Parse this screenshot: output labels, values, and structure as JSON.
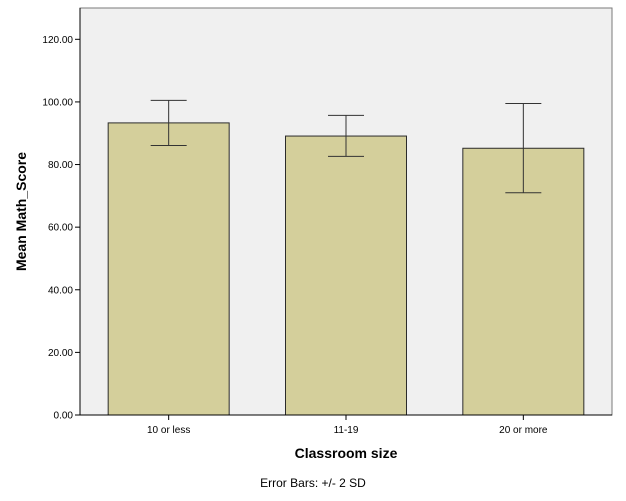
{
  "chart_data": {
    "type": "bar",
    "categories": [
      "10 or less",
      "11-19",
      "20 or more"
    ],
    "values": [
      93.3,
      89.1,
      85.2
    ],
    "error_bars": [
      {
        "low": 86.1,
        "high": 100.5
      },
      {
        "low": 82.6,
        "high": 95.7
      },
      {
        "low": 71.0,
        "high": 99.5
      }
    ],
    "ylim": [
      0,
      130
    ],
    "yticks": [
      0,
      20,
      40,
      60,
      80,
      100,
      120
    ],
    "ytick_labels": [
      "0.00",
      "20.00",
      "40.00",
      "60.00",
      "80.00",
      "100.00",
      "120.00"
    ],
    "xlabel": "Classroom size",
    "ylabel": "Mean Math_Score",
    "footnote": "Error Bars: +/- 2 SD",
    "colors": {
      "bar_fill": "#d4cf9b",
      "bar_stroke": "#2b2b2b",
      "plot_background": "#f0f0f0",
      "axis": "#000000"
    }
  }
}
